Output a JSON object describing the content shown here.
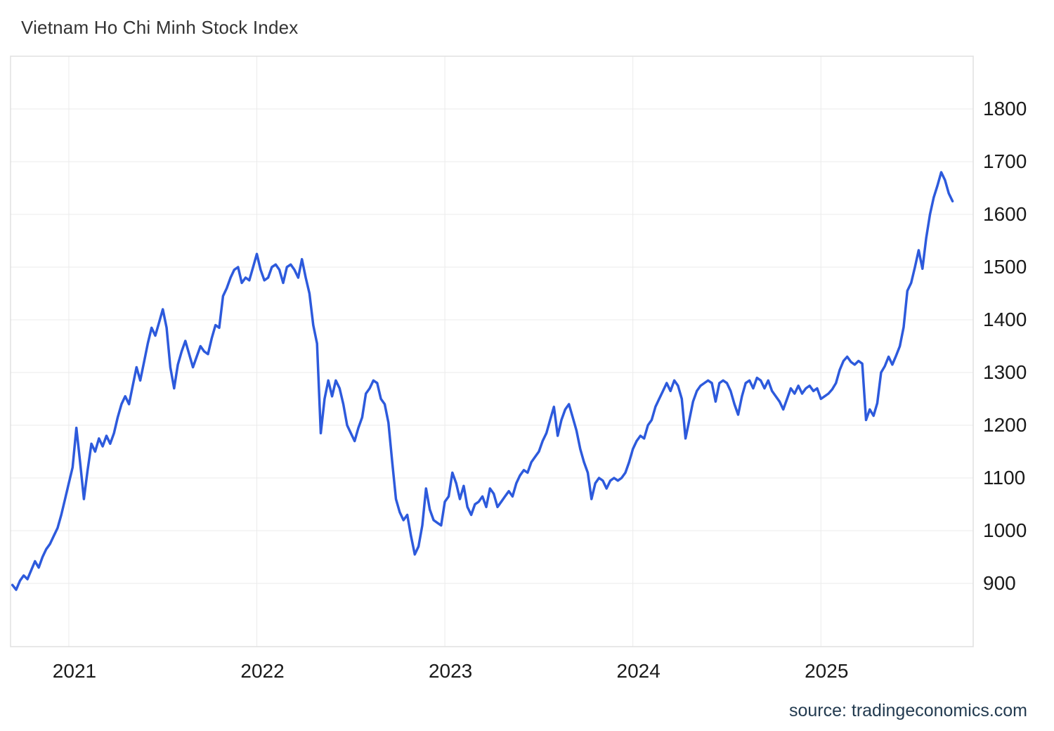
{
  "chart_data": {
    "type": "line",
    "title": "Vietnam Ho Chi Minh Stock Index",
    "xlabel": "",
    "ylabel": "",
    "source": "source: tradingeconomics.com",
    "grid": true,
    "legend": "none",
    "line_color": "#2d5adc",
    "grid_color": "#ebebeb",
    "border_color": "#e0e0e0",
    "tick_label_color": "#1a1a1a",
    "x_unit": "decimal_year",
    "x_range": [
      2020.69,
      2025.81
    ],
    "y_range": [
      780,
      1900
    ],
    "x_ticks": [
      {
        "value": 2021,
        "label": "2021"
      },
      {
        "value": 2022,
        "label": "2022"
      },
      {
        "value": 2023,
        "label": "2023"
      },
      {
        "value": 2024,
        "label": "2024"
      },
      {
        "value": 2025,
        "label": "2025"
      }
    ],
    "y_ticks": [
      {
        "value": 900,
        "label": "900"
      },
      {
        "value": 1000,
        "label": "1000"
      },
      {
        "value": 1100,
        "label": "1100"
      },
      {
        "value": 1200,
        "label": "1200"
      },
      {
        "value": 1300,
        "label": "1300"
      },
      {
        "value": 1400,
        "label": "1400"
      },
      {
        "value": 1500,
        "label": "1500"
      },
      {
        "value": 1600,
        "label": "1600"
      },
      {
        "value": 1700,
        "label": "1700"
      },
      {
        "value": 1800,
        "label": "1800"
      }
    ],
    "series": [
      {
        "name": "Vietnam Ho Chi Minh Stock Index",
        "x_start": 2020.7,
        "x_step": 0.02,
        "values": [
          897,
          888,
          905,
          915,
          908,
          925,
          942,
          930,
          950,
          965,
          975,
          990,
          1005,
          1030,
          1060,
          1090,
          1120,
          1195,
          1130,
          1060,
          1115,
          1165,
          1150,
          1175,
          1160,
          1180,
          1165,
          1185,
          1215,
          1240,
          1255,
          1240,
          1275,
          1310,
          1285,
          1320,
          1355,
          1385,
          1370,
          1395,
          1420,
          1385,
          1310,
          1270,
          1315,
          1340,
          1360,
          1335,
          1310,
          1330,
          1350,
          1340,
          1335,
          1365,
          1390,
          1385,
          1445,
          1460,
          1480,
          1495,
          1500,
          1470,
          1480,
          1475,
          1500,
          1525,
          1495,
          1475,
          1480,
          1500,
          1505,
          1495,
          1470,
          1500,
          1505,
          1495,
          1480,
          1515,
          1480,
          1450,
          1390,
          1355,
          1185,
          1250,
          1285,
          1255,
          1285,
          1270,
          1240,
          1200,
          1185,
          1170,
          1195,
          1215,
          1260,
          1270,
          1285,
          1280,
          1250,
          1240,
          1205,
          1130,
          1060,
          1035,
          1020,
          1030,
          990,
          955,
          970,
          1010,
          1080,
          1040,
          1020,
          1015,
          1010,
          1055,
          1065,
          1110,
          1090,
          1060,
          1085,
          1045,
          1030,
          1050,
          1055,
          1065,
          1045,
          1080,
          1070,
          1045,
          1055,
          1065,
          1075,
          1065,
          1090,
          1105,
          1115,
          1110,
          1130,
          1140,
          1150,
          1170,
          1185,
          1210,
          1235,
          1180,
          1210,
          1230,
          1240,
          1215,
          1190,
          1155,
          1130,
          1110,
          1060,
          1090,
          1100,
          1095,
          1080,
          1095,
          1100,
          1095,
          1100,
          1110,
          1130,
          1155,
          1170,
          1180,
          1175,
          1200,
          1210,
          1235,
          1250,
          1265,
          1280,
          1265,
          1285,
          1275,
          1250,
          1175,
          1210,
          1245,
          1265,
          1275,
          1280,
          1285,
          1280,
          1245,
          1280,
          1285,
          1280,
          1265,
          1240,
          1220,
          1255,
          1280,
          1285,
          1270,
          1290,
          1285,
          1270,
          1285,
          1265,
          1255,
          1245,
          1230,
          1250,
          1270,
          1260,
          1275,
          1260,
          1270,
          1275,
          1265,
          1270,
          1250,
          1255,
          1260,
          1268,
          1280,
          1305,
          1322,
          1330,
          1320,
          1315,
          1322,
          1317,
          1210,
          1230,
          1218,
          1242,
          1300,
          1312,
          1330,
          1315,
          1332,
          1350,
          1386,
          1455,
          1470,
          1500,
          1532,
          1497,
          1555,
          1600,
          1632,
          1655,
          1680,
          1665,
          1640,
          1625
        ]
      }
    ]
  }
}
